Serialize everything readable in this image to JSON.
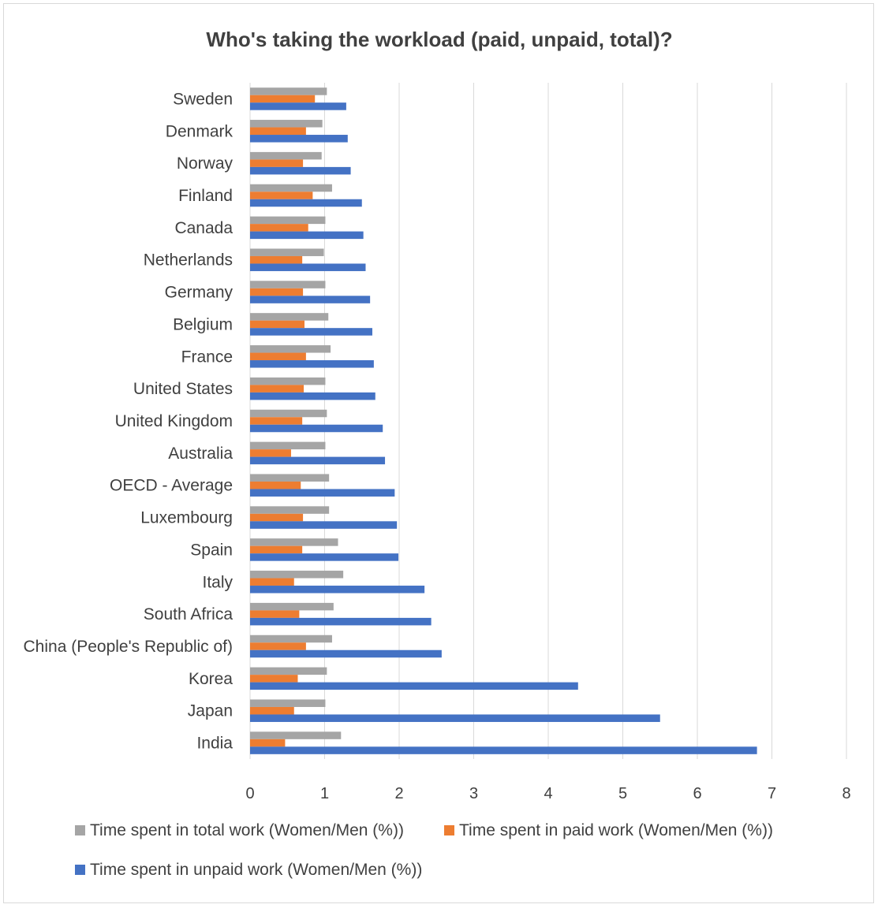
{
  "chart_data": {
    "type": "bar",
    "orientation": "horizontal",
    "title": "Who's taking the workload (paid, unpaid, total)?",
    "xlabel": "",
    "ylabel": "",
    "xlim": [
      0,
      8
    ],
    "xticks": [
      "0",
      "1",
      "2",
      "3",
      "4",
      "5",
      "6",
      "7",
      "8"
    ],
    "grid": true,
    "legend_position": "bottom",
    "categories": [
      "Sweden",
      "Denmark",
      "Norway",
      "Finland",
      "Canada",
      "Netherlands",
      "Germany",
      "Belgium",
      "France",
      "United States",
      "United Kingdom",
      "Australia",
      "OECD - Average",
      "Luxembourg",
      "Spain",
      "Italy",
      "South Africa",
      "China (People's Republic of)",
      "Korea",
      "Japan",
      "India"
    ],
    "series": [
      {
        "name": "Time spent in total work (Women/Men (%))",
        "color": "#a5a5a5",
        "values": [
          1.03,
          0.97,
          0.96,
          1.1,
          1.01,
          0.99,
          1.01,
          1.05,
          1.08,
          1.01,
          1.03,
          1.01,
          1.06,
          1.06,
          1.18,
          1.25,
          1.12,
          1.1,
          1.03,
          1.01,
          1.22
        ]
      },
      {
        "name": "Time spent in paid work (Women/Men (%))",
        "color": "#ed7d31",
        "values": [
          0.87,
          0.75,
          0.71,
          0.84,
          0.78,
          0.7,
          0.71,
          0.73,
          0.75,
          0.72,
          0.7,
          0.55,
          0.68,
          0.71,
          0.7,
          0.59,
          0.66,
          0.75,
          0.64,
          0.59,
          0.47
        ]
      },
      {
        "name": "Time spent in unpaid work (Women/Men (%))",
        "color": "#4472c4",
        "values": [
          1.29,
          1.31,
          1.35,
          1.5,
          1.52,
          1.55,
          1.61,
          1.64,
          1.66,
          1.68,
          1.78,
          1.81,
          1.94,
          1.97,
          1.99,
          2.34,
          2.43,
          2.57,
          4.4,
          5.5,
          6.8
        ]
      }
    ]
  }
}
